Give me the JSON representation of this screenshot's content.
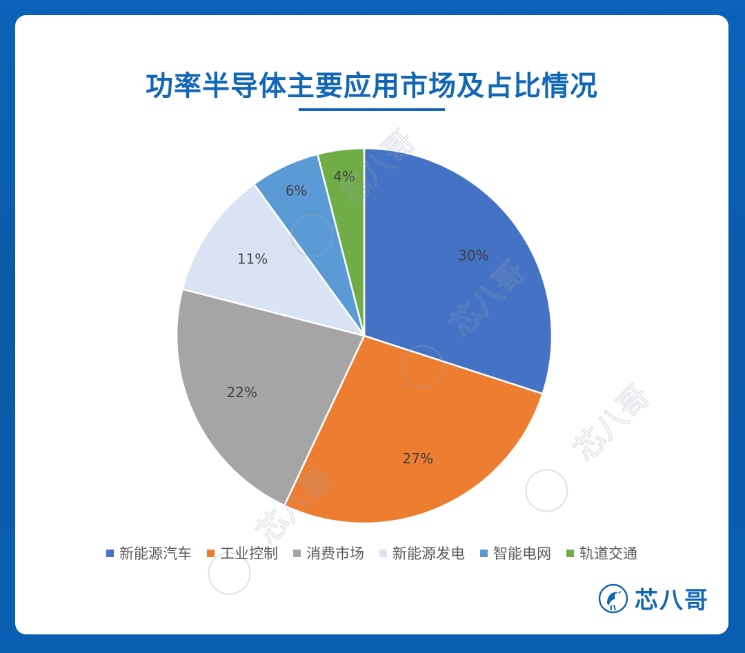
{
  "page": {
    "title": "功率半导体主要应用市场及占比情况",
    "brand_name": "芯八哥",
    "brand_logo_icon": "bird-circuit-logo-icon",
    "watermark_text": "芯八哥"
  },
  "colors": {
    "background": "#0a5fb2",
    "title": "#1266b6"
  },
  "chart_data": {
    "type": "pie",
    "title": "功率半导体主要应用市场及占比情况",
    "start_angle_deg": 0,
    "direction": "clockwise",
    "legend_position": "bottom",
    "slices": [
      {
        "name": "新能源汽车",
        "value": 30,
        "label": "30%",
        "color": "#4472c4"
      },
      {
        "name": "工业控制",
        "value": 27,
        "label": "27%",
        "color": "#ed7d31"
      },
      {
        "name": "消费市场",
        "value": 22,
        "label": "22%",
        "color": "#a5a5a5"
      },
      {
        "name": "新能源发电",
        "value": 11,
        "label": "11%",
        "color": "#dae3f3"
      },
      {
        "name": "智能电网",
        "value": 6,
        "label": "6%",
        "color": "#5b9bd5"
      },
      {
        "name": "轨道交通",
        "value": 4,
        "label": "4%",
        "color": "#70ad47"
      }
    ]
  }
}
